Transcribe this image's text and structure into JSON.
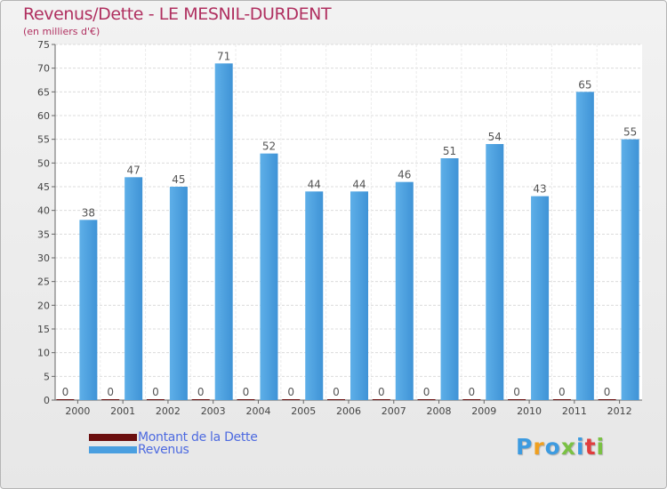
{
  "header": {
    "title": "Revenus/Dette - LE MESNIL-DURDENT",
    "subtitle": "(en milliers d'€)"
  },
  "chart_data": {
    "type": "bar",
    "categories": [
      "2000",
      "2001",
      "2002",
      "2003",
      "2004",
      "2005",
      "2006",
      "2007",
      "2008",
      "2009",
      "2010",
      "2011",
      "2012"
    ],
    "series": [
      {
        "name": "Montant de la Dette",
        "color": "#6b0f0f",
        "values": [
          0,
          0,
          0,
          0,
          0,
          0,
          0,
          0,
          0,
          0,
          0,
          0,
          0
        ]
      },
      {
        "name": "Revenus",
        "color": "#4a9fe0",
        "values": [
          38,
          47,
          45,
          71,
          52,
          44,
          44,
          46,
          51,
          54,
          43,
          65,
          55
        ]
      }
    ],
    "ylim": [
      0,
      75
    ],
    "yticks": [
      0,
      5,
      10,
      15,
      20,
      25,
      30,
      35,
      40,
      45,
      50,
      55,
      60,
      65,
      70,
      75
    ],
    "grid": true,
    "legend_position": "bottom-left",
    "xlabel": "",
    "ylabel": ""
  },
  "legend": {
    "items": [
      {
        "label": "Montant de la Dette",
        "color": "#6b0f0f"
      },
      {
        "label": "Revenus",
        "color": "#4a9fe0"
      }
    ]
  },
  "logo": {
    "text": "Proxiti"
  }
}
